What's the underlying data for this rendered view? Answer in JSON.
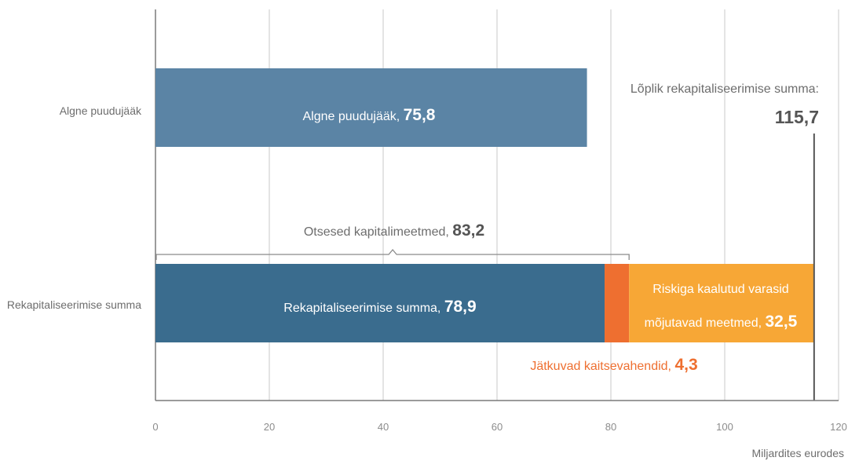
{
  "chart_data": {
    "type": "bar",
    "orientation": "horizontal",
    "stacked": true,
    "categories": [
      "Algne puudujääk",
      "Rekapitaliseerimise summa"
    ],
    "series": [
      {
        "name": "Algne puudujääk",
        "values": [
          75.8,
          0
        ],
        "color": "#5b84a5"
      },
      {
        "name": "Rekapitaliseerimise summa",
        "values": [
          0,
          78.9
        ],
        "color": "#3a6c8e"
      },
      {
        "name": "Jätkuvad kaitsevahendid",
        "values": [
          0,
          4.3
        ],
        "color": "#ee6f30"
      },
      {
        "name": "Riskiga kaalutud varasid mõjutavad meetmed",
        "values": [
          0,
          32.5
        ],
        "color": "#f7a736"
      }
    ],
    "xlim": [
      0,
      120
    ],
    "xticks": [
      0,
      20,
      40,
      60,
      80,
      100,
      120
    ],
    "xtick_labels": [
      "0",
      "20",
      "40",
      "60",
      "80",
      "100",
      "120"
    ],
    "xlabel": "Miljardites eurodes",
    "grid": true,
    "bar_labels": {
      "deficit": {
        "text": "Algne puudujääk,",
        "value": "75,8"
      },
      "recap": {
        "text": "Rekapitaliseerimise summa,",
        "value": "78,9"
      },
      "safeguards": {
        "text": "Jätkuvad kaitsevahendid,",
        "value": "4,3"
      },
      "rwa": {
        "text_line1": "Riskiga kaalutud varasid",
        "text_line2": "mõjutavad meetmed,",
        "value": "32,5"
      }
    },
    "annotations": {
      "direct_measures": {
        "text": "Otsesed kapitalimeetmed,",
        "value": "83,2",
        "x_value": 83.2
      },
      "final_total": {
        "text": "Lõplik rekapitaliseerimise summa:",
        "value": "115,7",
        "x_value": 115.7
      }
    },
    "colors": {
      "grid": "#c9c9c9",
      "axis": "#7a7a7a",
      "text": "#6d6d6d",
      "orange_text": "#ee6f30",
      "total_line": "#555555"
    }
  }
}
